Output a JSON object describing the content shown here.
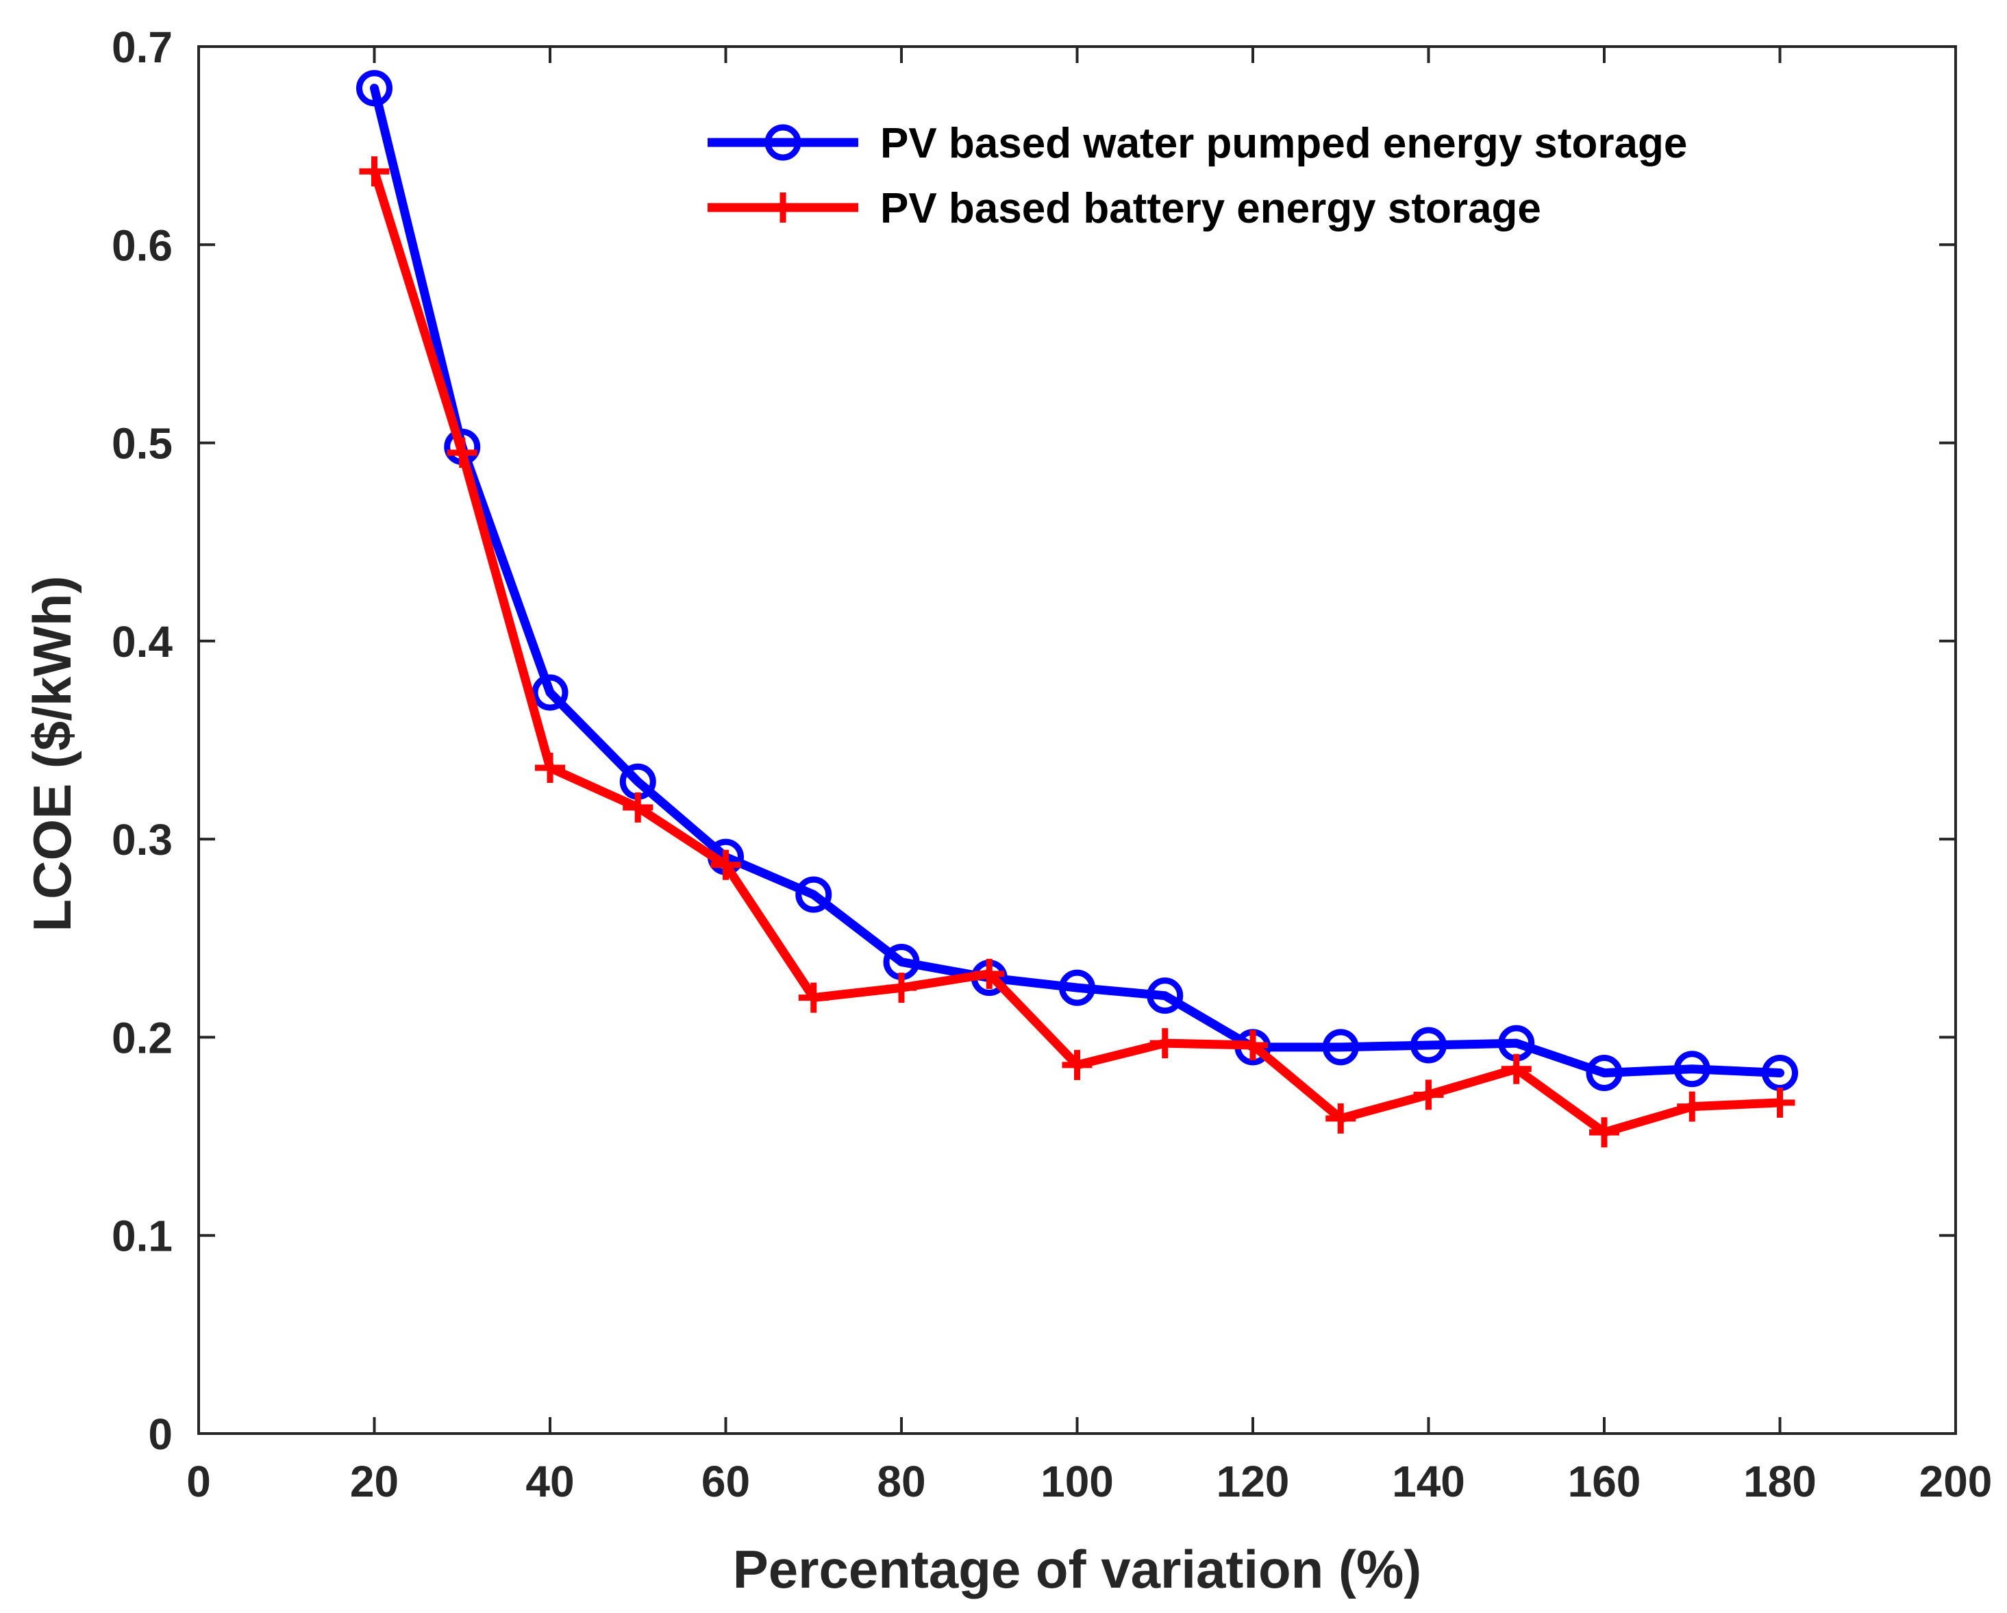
{
  "chart_data": {
    "type": "line",
    "title": "",
    "xlabel": "Percentage of variation (%)",
    "ylabel": "LCOE ($/kWh)",
    "xlim": [
      0,
      200
    ],
    "ylim": [
      0,
      0.7
    ],
    "xticks": [
      0,
      20,
      40,
      60,
      80,
      100,
      120,
      140,
      160,
      180,
      200
    ],
    "xtick_labels": [
      "0",
      "20",
      "40",
      "60",
      "80",
      "100",
      "120",
      "140",
      "160",
      "180",
      "200"
    ],
    "yticks": [
      0,
      0.1,
      0.2,
      0.3,
      0.4,
      0.5,
      0.6,
      0.7
    ],
    "ytick_labels": [
      "0",
      "0.1",
      "0.2",
      "0.3",
      "0.4",
      "0.5",
      "0.6",
      "0.7"
    ],
    "grid": false,
    "legend_position": "top-right",
    "x": [
      20,
      30,
      40,
      50,
      60,
      70,
      80,
      90,
      100,
      110,
      120,
      130,
      140,
      150,
      160,
      170,
      180
    ],
    "series": [
      {
        "name": "PV based water pumped energy storage",
        "color": "#0000ff",
        "marker": "circle",
        "values": [
          0.679,
          0.498,
          0.374,
          0.329,
          0.291,
          0.272,
          0.238,
          0.23,
          0.225,
          0.221,
          0.195,
          0.195,
          0.196,
          0.197,
          0.182,
          0.184,
          0.182
        ]
      },
      {
        "name": "PV based battery energy storage",
        "color": "#ff0000",
        "marker": "plus",
        "values": [
          0.637,
          0.495,
          0.336,
          0.316,
          0.287,
          0.22,
          0.225,
          0.232,
          0.186,
          0.197,
          0.196,
          0.159,
          0.171,
          0.184,
          0.152,
          0.165,
          0.167
        ]
      }
    ]
  }
}
